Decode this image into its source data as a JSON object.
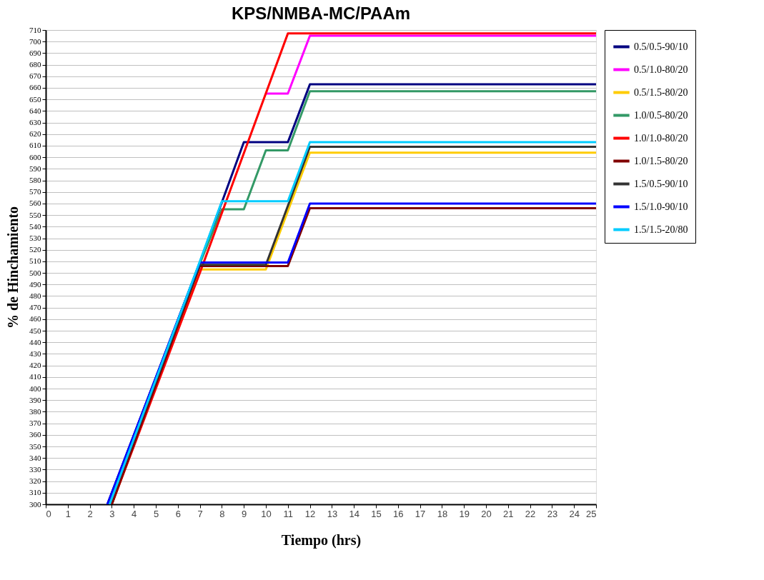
{
  "chart_data": {
    "type": "line",
    "title": "KPS/NMBA-MC/PAAm",
    "xlabel": "Tiempo (hrs)",
    "ylabel": "% de Hinchamiento",
    "xlim": [
      0,
      25
    ],
    "xticks": [
      0,
      1,
      2,
      3,
      4,
      5,
      6,
      7,
      8,
      9,
      10,
      11,
      12,
      13,
      14,
      15,
      16,
      17,
      18,
      19,
      20,
      21,
      22,
      23,
      24,
      25
    ],
    "ylim": [
      300,
      710
    ],
    "yticks": [
      300,
      310,
      320,
      330,
      340,
      350,
      360,
      370,
      380,
      390,
      400,
      410,
      420,
      430,
      440,
      450,
      460,
      470,
      480,
      490,
      500,
      510,
      520,
      530,
      540,
      550,
      560,
      570,
      580,
      590,
      600,
      610,
      620,
      630,
      640,
      650,
      660,
      670,
      680,
      690,
      700,
      710
    ],
    "grid": "y",
    "legend": "right",
    "marker": "none",
    "line_style": "solid",
    "series": [
      {
        "name": "0.5/0.5-90/10",
        "color": "#000080",
        "x": [
          2.8,
          7,
          9,
          11,
          12,
          25
        ],
        "values": [
          300,
          509,
          613,
          613,
          663,
          663
        ]
      },
      {
        "name": "0.5/1.0-80/20",
        "color": "#ff00ff",
        "x": [
          10,
          11,
          12,
          25
        ],
        "values": [
          655,
          655,
          705,
          705
        ]
      },
      {
        "name": "0.5/1.5-80/20",
        "color": "#ffcc00",
        "x": [
          3,
          7,
          10,
          12,
          25
        ],
        "values": [
          300,
          503,
          503,
          604,
          604
        ]
      },
      {
        "name": "1.0/0.5-80/20",
        "color": "#339966",
        "x": [
          3,
          7,
          8,
          9,
          10,
          11,
          12,
          25
        ],
        "values": [
          300,
          508,
          555,
          555,
          606,
          606,
          657,
          657
        ]
      },
      {
        "name": "1.0/1.0-80/20",
        "color": "#ff0000",
        "x": [
          3,
          7,
          11,
          25
        ],
        "values": [
          300,
          500,
          707,
          707
        ]
      },
      {
        "name": "1.0/1.5-80/20",
        "color": "#800000",
        "x": [
          3,
          7,
          11,
          12,
          25
        ],
        "values": [
          300,
          506,
          506,
          556,
          556
        ]
      },
      {
        "name": "1.5/0.5-90/10",
        "color": "#333333",
        "x": [
          2.9,
          7,
          10,
          12,
          25
        ],
        "values": [
          300,
          507,
          507,
          609,
          609
        ]
      },
      {
        "name": "1.5/1.0-90/10",
        "color": "#0000ff",
        "x": [
          2.8,
          7,
          11,
          12,
          25
        ],
        "values": [
          300,
          509,
          509,
          560,
          560
        ]
      },
      {
        "name": "1.5/1.5-20/80",
        "color": "#00ccff",
        "x": [
          2.9,
          7,
          8,
          11,
          12,
          25
        ],
        "values": [
          300,
          510,
          562,
          562,
          613,
          613
        ]
      }
    ]
  }
}
